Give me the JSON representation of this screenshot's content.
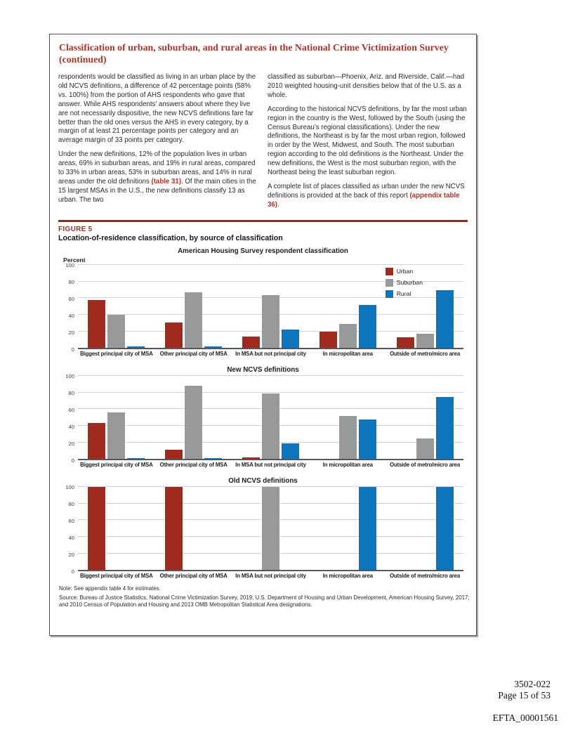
{
  "article": {
    "title": "Classification of urban, suburban, and rural areas in the National Crime Victimization Survey (continued)",
    "col1_para1": "respondents would be classified as living in an urban place by the old NCVS definitions, a difference of 42 percentage points (58% vs. 100%) from the portion of AHS respondents who gave that answer. While AHS respondents’ answers about where they live are not necessarily dispositive, the new NCVS definitions fare far better than the old ones versus the AHS in every category, by a margin of at least 21 percentage points per category and an average margin of 33 points per category.",
    "col1_para2_pre": "Under the new definitions, 12% of the population lives in urban areas, 69% in suburban areas, and 19% in rural areas, compared to 33% in urban areas, 53% in suburban areas, and 14% in rural areas under the old definitions ",
    "col1_para2_link": "(table 31)",
    "col1_para2_post": ". Of the main cities in the 15 largest MSAs in the U.S., the new definitions classify 13 as urban. The two",
    "col2_para1": "classified as suburban—Phoenix, Ariz. and Riverside, Calif.—had 2010 weighted housing-unit densities below that of the U.S. as a whole.",
    "col2_para2": "According to the historical NCVS definitions, by far the most urban region in the country is the West, followed by the South (using the Census Bureau’s regional classifications). Under the new definitions, the Northeast is by far the most urban region, followed in order by the West, Midwest, and South. The most suburban region according to the old definitions is the Northeast. Under the new definitions, the West is the most suburban region, with the Northeast being the least suburban region.",
    "col2_para3_pre": "A complete list of places classified as urban under the new NCVS definitions is provided at the back of this report ",
    "col2_para3_link": "(appendix table 36)",
    "col2_para3_post": "."
  },
  "figure": {
    "label": "FIGURE 5",
    "title": "Location-of-residence classification, by source of classification",
    "axis_unit": "Percent",
    "note": "Note: See appendix table 4 for estimates.",
    "source": "Source: Bureau of Justice Statistics, National Crime Victimization Survey, 2019; U.S. Department of Housing and Urban Development, American Housing Survey, 2017; and 2010 Census of Population and Housing and 2013 OMB Metropolitan Statistical Area designations.",
    "legend_labels": [
      "Urban",
      "Suburban",
      "Rural"
    ],
    "series_colors": {
      "Urban": "#A12A20",
      "Suburban": "#98999B",
      "Rural": "#0C76BD"
    }
  },
  "chart_data": [
    {
      "type": "bar",
      "title": "American Housing Survey respondent classification",
      "categories": [
        "Biggest principal city of MSA",
        "Other principal city of MSA",
        "In MSA but not principal city",
        "In micropolitan area",
        "Outside of metro/micro area"
      ],
      "series": [
        {
          "name": "Urban",
          "values": [
            58,
            31,
            14,
            20,
            13
          ]
        },
        {
          "name": "Suburban",
          "values": [
            40,
            67,
            64,
            29,
            17
          ]
        },
        {
          "name": "Rural",
          "values": [
            2,
            2,
            22,
            52,
            70
          ]
        }
      ],
      "ylabel": "Percent",
      "ylim": [
        0,
        100
      ],
      "yticks": [
        0,
        20,
        40,
        60,
        80,
        100
      ],
      "grid": true,
      "legend": true,
      "legend_position": "top-right"
    },
    {
      "type": "bar",
      "title": "New NCVS definitions",
      "categories": [
        "Biggest principal city of MSA",
        "Other principal city of MSA",
        "In MSA but not principal city",
        "In micropolitan area",
        "Outside of metro/micro area"
      ],
      "series": [
        {
          "name": "Urban",
          "values": [
            43,
            11,
            2,
            0,
            0
          ]
        },
        {
          "name": "Suburban",
          "values": [
            56,
            88,
            79,
            52,
            25
          ]
        },
        {
          "name": "Rural",
          "values": [
            1,
            1,
            19,
            48,
            75
          ]
        }
      ],
      "ylabel": "Percent",
      "ylim": [
        0,
        100
      ],
      "yticks": [
        0,
        20,
        40,
        60,
        80,
        100
      ],
      "grid": true,
      "legend": false
    },
    {
      "type": "bar",
      "title": "Old NCVS definitions",
      "categories": [
        "Biggest principal city of MSA",
        "Other principal city of MSA",
        "In MSA but not principal city",
        "In micropolitan area",
        "Outside of metro/micro area"
      ],
      "series": [
        {
          "name": "Urban",
          "values": [
            100,
            100,
            0,
            0,
            0
          ]
        },
        {
          "name": "Suburban",
          "values": [
            0,
            0,
            100,
            0,
            0
          ]
        },
        {
          "name": "Rural",
          "values": [
            0,
            0,
            0,
            100,
            100
          ]
        }
      ],
      "ylabel": "Percent",
      "ylim": [
        0,
        100
      ],
      "yticks": [
        0,
        20,
        40,
        60,
        80,
        100
      ],
      "grid": true,
      "legend": false
    }
  ],
  "footer": {
    "doc_number": "3502-022",
    "page_label": "Page 15 of 53",
    "bates_number": "EFTA_00001561"
  },
  "colors": {
    "title_red": "#A6362B",
    "link_red": "#A6362B",
    "rule_red": "#7C3125",
    "figure_label_red": "#87382A",
    "urban": "#A12A20",
    "suburban": "#98999B",
    "rural": "#0C76BD",
    "axis_line": "#55565A",
    "gridline": "#D2D3D5"
  }
}
